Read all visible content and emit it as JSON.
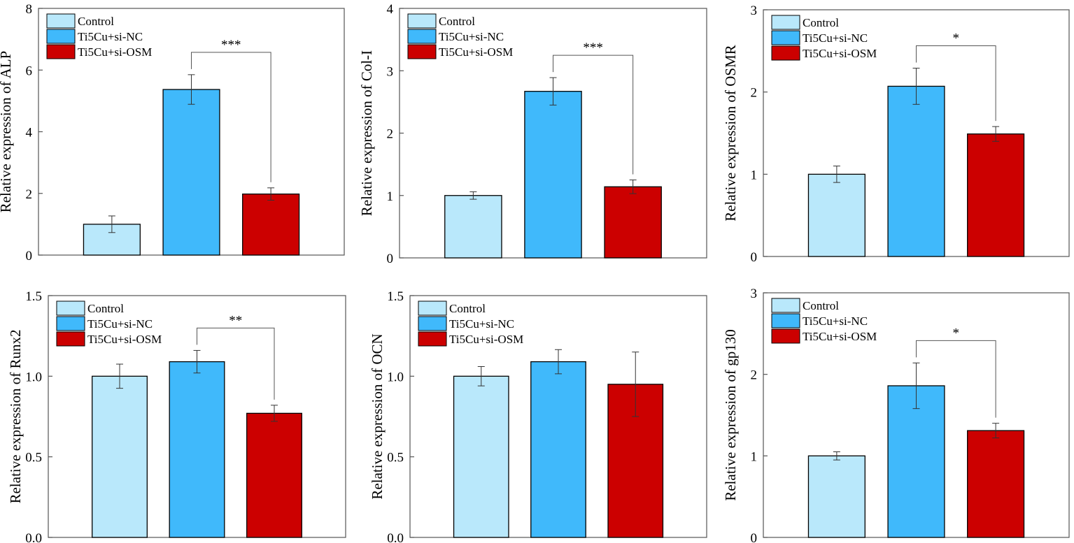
{
  "figure": {
    "colors": {
      "Control": "#b9e8fb",
      "Ti5Cu+si-NC": "#40b9fb",
      "Ti5Cu+si-OSM": "#cc0000",
      "axis": "#555555",
      "bar_edge": "#000000"
    },
    "legend_labels": [
      "Control",
      "Ti5Cu+si-NC",
      "Ti5Cu+si-OSM"
    ]
  },
  "chart_data": [
    {
      "id": "alp",
      "type": "bar",
      "categories": [
        "Control",
        "Ti5Cu+si-NC",
        "Ti5Cu+si-OSM"
      ],
      "values": [
        1.0,
        5.37,
        1.98
      ],
      "errors": [
        0.27,
        0.48,
        0.2
      ],
      "ylabel": "Relative expression of  ALP",
      "ylim": [
        0,
        8
      ],
      "yticks": [
        0,
        2,
        4,
        6,
        8
      ],
      "tick_labels": [
        "0",
        "2",
        "4",
        "6",
        "8"
      ],
      "significance": {
        "from": 1,
        "to": 2,
        "label": "***"
      },
      "legend": "top-left"
    },
    {
      "id": "col1",
      "type": "bar",
      "categories": [
        "Control",
        "Ti5Cu+si-NC",
        "Ti5Cu+si-OSM"
      ],
      "values": [
        1.0,
        2.67,
        1.14
      ],
      "errors": [
        0.06,
        0.22,
        0.11
      ],
      "ylabel": "Relative expression of  Col-I",
      "ylim": [
        0,
        4
      ],
      "yticks": [
        0,
        1,
        2,
        3,
        4
      ],
      "tick_labels": [
        "0",
        "1",
        "2",
        "3",
        "4"
      ],
      "significance": {
        "from": 1,
        "to": 2,
        "label": "***"
      },
      "legend": "top-left"
    },
    {
      "id": "osmr",
      "type": "bar",
      "categories": [
        "Control",
        "Ti5Cu+si-NC",
        "Ti5Cu+si-OSM"
      ],
      "values": [
        1.0,
        2.07,
        1.49
      ],
      "errors": [
        0.1,
        0.22,
        0.09
      ],
      "ylabel": "Relative expression of  OSMR",
      "ylim": [
        0,
        3
      ],
      "yticks": [
        0,
        1,
        2,
        3
      ],
      "tick_labels": [
        "0",
        "1",
        "2",
        "3"
      ],
      "significance": {
        "from": 1,
        "to": 2,
        "label": "*"
      },
      "legend": "top-left"
    },
    {
      "id": "runx2",
      "type": "bar",
      "categories": [
        "Control",
        "Ti5Cu+si-NC",
        "Ti5Cu+si-OSM"
      ],
      "values": [
        1.0,
        1.09,
        0.77
      ],
      "errors": [
        0.075,
        0.07,
        0.05
      ],
      "ylabel": "Relative expression of  Runx2",
      "ylim": [
        0,
        1.5
      ],
      "yticks": [
        0,
        0.5,
        1.0,
        1.5
      ],
      "tick_labels": [
        "0.0",
        "0.5",
        "1.0",
        "1.5"
      ],
      "significance": {
        "from": 1,
        "to": 2,
        "label": "**"
      },
      "legend": "top-left"
    },
    {
      "id": "ocn",
      "type": "bar",
      "categories": [
        "Control",
        "Ti5Cu+si-NC",
        "Ti5Cu+si-OSM"
      ],
      "values": [
        1.0,
        1.09,
        0.95
      ],
      "errors": [
        0.06,
        0.075,
        0.2
      ],
      "ylabel": "Relative expression of  OCN",
      "ylim": [
        0,
        1.5
      ],
      "yticks": [
        0,
        0.5,
        1.0,
        1.5
      ],
      "tick_labels": [
        "0.0",
        "0.5",
        "1.0",
        "1.5"
      ],
      "significance": null,
      "legend": "top-left"
    },
    {
      "id": "gp130",
      "type": "bar",
      "categories": [
        "Control",
        "Ti5Cu+si-NC",
        "Ti5Cu+si-OSM"
      ],
      "values": [
        1.0,
        1.86,
        1.31
      ],
      "errors": [
        0.05,
        0.28,
        0.09
      ],
      "ylabel": "Relative expression of  gp130",
      "ylim": [
        0,
        3
      ],
      "yticks": [
        0,
        1,
        2,
        3
      ],
      "tick_labels": [
        "0",
        "1",
        "2",
        "3"
      ],
      "significance": {
        "from": 1,
        "to": 2,
        "label": "*"
      },
      "legend": "top-left"
    }
  ]
}
